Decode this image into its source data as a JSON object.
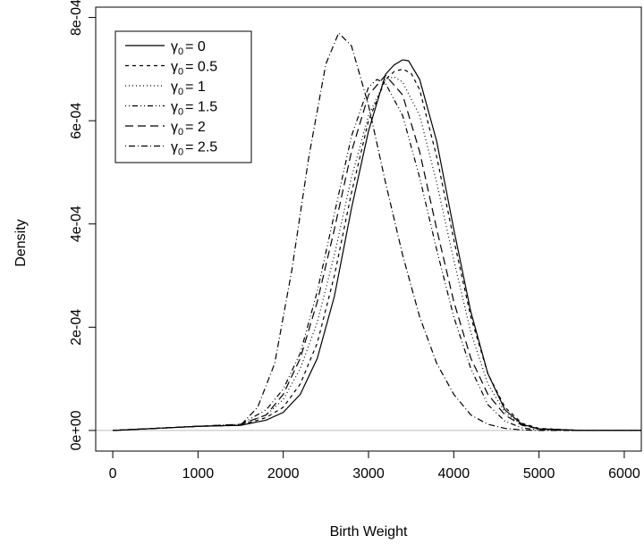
{
  "chart_data": {
    "type": "line",
    "title": "",
    "xlabel": "Birth Weight",
    "ylabel": "Density",
    "xlim": [
      -200,
      6200
    ],
    "ylim": [
      -4e-05,
      0.00082
    ],
    "xticks": [
      0,
      1000,
      2000,
      3000,
      4000,
      5000,
      6000
    ],
    "xtick_labels": [
      "0",
      "1000",
      "2000",
      "3000",
      "4000",
      "5000",
      "6000"
    ],
    "yticks": [
      0,
      0.0002,
      0.0004,
      0.0006,
      0.0008
    ],
    "ytick_labels": [
      "0e+00",
      "2e-04",
      "4e-04",
      "6e-04",
      "8e-04"
    ],
    "grid": false,
    "baseline": {
      "y": 0,
      "color": "#bebebe"
    },
    "legend_position": "top-left",
    "line_color": "#000000",
    "series": [
      {
        "name": "γ₀ = 0",
        "legend_symbol": "γ",
        "legend_sub": "0",
        "legend_value": "= 0",
        "line_style": "solid",
        "x": [
          0,
          500,
          1000,
          1500,
          1800,
          2000,
          2200,
          2400,
          2600,
          2800,
          3000,
          3200,
          3300,
          3400,
          3470,
          3600,
          3800,
          4000,
          4200,
          4400,
          4600,
          4800,
          5000,
          5500,
          6000,
          6200
        ],
        "y": [
          0,
          4e-06,
          8e-06,
          1e-05,
          2e-05,
          3.5e-05,
          7e-05,
          0.00014,
          0.00026,
          0.00043,
          0.00058,
          0.00069,
          0.000708,
          0.000718,
          0.000716,
          0.00068,
          0.00056,
          0.00039,
          0.00023,
          0.00011,
          4e-05,
          1.2e-05,
          3e-06,
          0,
          0,
          0
        ]
      },
      {
        "name": "γ₀ = 0.5",
        "legend_symbol": "γ",
        "legend_sub": "0",
        "legend_value": "= 0.5",
        "line_style": "dashed-short",
        "x": [
          0,
          500,
          1000,
          1500,
          1800,
          2000,
          2200,
          2400,
          2600,
          2800,
          3000,
          3200,
          3300,
          3400,
          3500,
          3600,
          3800,
          4000,
          4200,
          4400,
          4600,
          4800,
          5000,
          5500,
          6000,
          6200
        ],
        "y": [
          0,
          4e-06,
          8e-06,
          1e-05,
          2.5e-05,
          4.5e-05,
          9e-05,
          0.00017,
          0.0003,
          0.00046,
          0.0006,
          0.00068,
          0.000695,
          0.0007,
          0.000692,
          0.00066,
          0.00053,
          0.00037,
          0.00022,
          0.00011,
          4.5e-05,
          1.4e-05,
          4e-06,
          0,
          0,
          0
        ]
      },
      {
        "name": "γ₀ = 1",
        "legend_symbol": "γ",
        "legend_sub": "0",
        "legend_value": "= 1",
        "line_style": "dotted",
        "x": [
          0,
          500,
          1000,
          1500,
          1800,
          2000,
          2200,
          2400,
          2600,
          2800,
          3000,
          3200,
          3300,
          3400,
          3600,
          3800,
          4000,
          4200,
          4400,
          4600,
          4800,
          5000,
          5500,
          6000,
          6200
        ],
        "y": [
          0,
          4e-06,
          8e-06,
          1.1e-05,
          3e-05,
          6e-05,
          0.00012,
          0.00021,
          0.00034,
          0.00049,
          0.00061,
          0.00068,
          0.000685,
          0.000675,
          0.00061,
          0.00048,
          0.00033,
          0.00019,
          9e-05,
          3.5e-05,
          1.1e-05,
          3e-06,
          0,
          0,
          0
        ]
      },
      {
        "name": "γ₀ = 1.5",
        "legend_symbol": "γ",
        "legend_sub": "0",
        "legend_value": "= 1.5",
        "line_style": "dotdash-double",
        "x": [
          0,
          500,
          1000,
          1500,
          1800,
          2000,
          2200,
          2400,
          2600,
          2800,
          3000,
          3100,
          3200,
          3400,
          3600,
          3800,
          4000,
          4200,
          4400,
          4600,
          4800,
          5000,
          5500,
          6000,
          6200
        ],
        "y": [
          0,
          4e-06,
          8e-06,
          1.2e-05,
          4e-05,
          8e-05,
          0.00015,
          0.00027,
          0.00042,
          0.00057,
          0.000665,
          0.00068,
          0.000672,
          0.00061,
          0.00049,
          0.00035,
          0.00022,
          0.00012,
          5e-05,
          1.8e-05,
          5e-06,
          1e-06,
          0,
          0,
          0
        ]
      },
      {
        "name": "γ₀ = 2",
        "legend_symbol": "γ",
        "legend_sub": "0",
        "legend_value": "= 2",
        "line_style": "dashed-long",
        "x": [
          0,
          500,
          1000,
          1500,
          1800,
          2000,
          2200,
          2400,
          2600,
          2800,
          3000,
          3200,
          3400,
          3600,
          3800,
          4000,
          4200,
          4400,
          4600,
          4800,
          5000,
          5500,
          6000,
          6200
        ],
        "y": [
          0,
          4e-06,
          8e-06,
          1.2e-05,
          3e-05,
          7e-05,
          0.00014,
          0.00025,
          0.00039,
          0.00054,
          0.00065,
          0.000688,
          0.00065,
          0.00054,
          0.00039,
          0.00025,
          0.00014,
          7e-05,
          3e-05,
          1e-05,
          3e-06,
          0,
          0,
          0
        ]
      },
      {
        "name": "γ₀ = 2.5",
        "legend_symbol": "γ",
        "legend_sub": "0",
        "legend_value": "= 2.5",
        "line_style": "dotdash",
        "x": [
          0,
          500,
          1000,
          1500,
          1700,
          1900,
          2100,
          2300,
          2500,
          2650,
          2800,
          3000,
          3200,
          3400,
          3600,
          3800,
          4000,
          4200,
          4400,
          4600,
          4800,
          5000,
          5500,
          6000,
          6200
        ],
        "y": [
          0,
          4e-06,
          8e-06,
          1e-05,
          4.5e-05,
          0.00013,
          0.00031,
          0.00053,
          0.00071,
          0.00077,
          0.000745,
          0.00063,
          0.00048,
          0.00034,
          0.00022,
          0.00013,
          7e-05,
          3e-05,
          1.2e-05,
          4e-06,
          1e-06,
          0,
          0,
          0,
          0
        ]
      }
    ]
  }
}
